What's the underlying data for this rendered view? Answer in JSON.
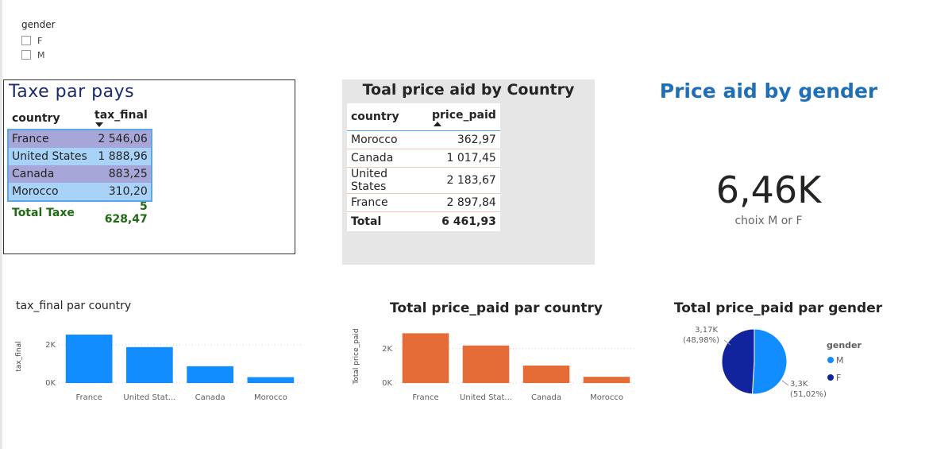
{
  "slicer": {
    "title": "gender",
    "options": [
      "F",
      "M"
    ]
  },
  "tax_table": {
    "title": "Taxe  par pays",
    "headers": [
      "country",
      "tax_final"
    ],
    "rows": [
      [
        "France",
        "2 546,06"
      ],
      [
        "United States",
        "1 888,96"
      ],
      [
        "Canada",
        "883,25"
      ],
      [
        "Morocco",
        "310,20"
      ]
    ],
    "total_label": "Total Taxe",
    "total_value": "5 628,47"
  },
  "price_table": {
    "title": "Toal price aid by Country",
    "headers": [
      "country",
      "price_paid"
    ],
    "rows": [
      [
        "Morocco",
        "362,97"
      ],
      [
        "Canada",
        "1 017,45"
      ],
      [
        "United States",
        "2 183,67"
      ],
      [
        "France",
        "2 897,84"
      ]
    ],
    "total_label": "Total",
    "total_value": "6 461,93"
  },
  "kpi": {
    "title": "Price aid by gender",
    "value": "6,46K",
    "subtitle": "choix M or F"
  },
  "chart_data": [
    {
      "type": "bar",
      "title": "tax_final par country",
      "ylabel": "tax_final",
      "categories": [
        "France",
        "United States",
        "Canada",
        "Morocco"
      ],
      "tick_labels": [
        "France",
        "United Stat...",
        "Canada",
        "Morocco"
      ],
      "values": [
        2546.06,
        1888.96,
        883.25,
        310.2
      ],
      "yticks": [
        0,
        2000
      ],
      "ytick_labels": [
        "0K",
        "2K"
      ],
      "ylim": [
        0,
        2800
      ],
      "color": "#118dff"
    },
    {
      "type": "bar",
      "title": "Total price_paid par country",
      "ylabel": "Total price_paid",
      "categories": [
        "France",
        "United States",
        "Canada",
        "Morocco"
      ],
      "tick_labels": [
        "France",
        "United Stat...",
        "Canada",
        "Morocco"
      ],
      "values": [
        2897.84,
        2183.67,
        1017.45,
        362.97
      ],
      "yticks": [
        0,
        2000
      ],
      "ytick_labels": [
        "0K",
        "2K"
      ],
      "ylim": [
        0,
        3100
      ],
      "color": "#e66c37"
    },
    {
      "type": "pie",
      "title": "Total price_paid par gender",
      "legend_title": "gender",
      "slices": [
        {
          "name": "M",
          "value": 3.3,
          "label": "3,3K",
          "pct": "(51,02%)",
          "color": "#118dff"
        },
        {
          "name": "F",
          "value": 3.17,
          "label": "3,17K",
          "pct": "(48,98%)",
          "color": "#12239e"
        }
      ]
    }
  ]
}
